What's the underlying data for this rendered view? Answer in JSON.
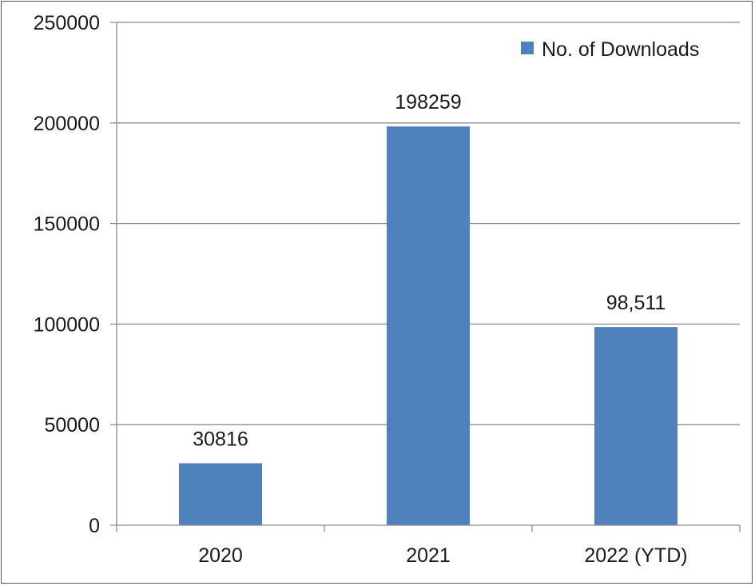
{
  "chart_data": {
    "type": "bar",
    "categories": [
      "2020",
      "2021",
      "2022 (YTD)"
    ],
    "series": [
      {
        "name": "No. of Downloads",
        "values": [
          30816,
          198259,
          98511
        ],
        "data_labels": [
          "30816",
          "198259",
          "98,511"
        ]
      }
    ],
    "title": "",
    "xlabel": "",
    "ylabel": "",
    "ylim": [
      0,
      250000
    ],
    "yticks": [
      0,
      50000,
      100000,
      150000,
      200000,
      250000
    ],
    "ytick_labels": [
      "0",
      "50000",
      "100000",
      "150000",
      "200000",
      "250000"
    ],
    "grid": true,
    "legend_position": "top-right",
    "colors": {
      "bar": "#4F81BD",
      "grid": "#8c8c8c",
      "axis": "#8c8c8c"
    }
  }
}
